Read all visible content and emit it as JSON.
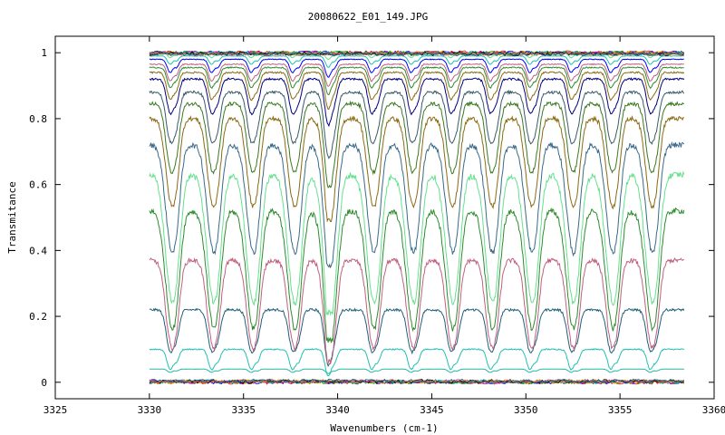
{
  "chart_data": {
    "type": "line",
    "title": "20080622_E01_149.JPG",
    "xlabel": "Wavenumbers (cm-1)",
    "ylabel": "Transmitance",
    "xlim": [
      3325,
      3360
    ],
    "ylim": [
      -0.05,
      1.05
    ],
    "x_ticks": [
      "3325",
      "3330",
      "3335",
      "3340",
      "3345",
      "3350",
      "3355",
      "3360"
    ],
    "x_tick_values": [
      3325,
      3330,
      3335,
      3340,
      3345,
      3350,
      3355,
      3360
    ],
    "y_ticks": [
      "0",
      "0.2",
      "0.4",
      "0.6",
      "0.8",
      "1"
    ],
    "y_tick_values": [
      0,
      0.2,
      0.4,
      0.6,
      0.8,
      1.0
    ],
    "x_range": [
      3330,
      3358.4
    ],
    "line_periods_cm1": 2.13,
    "line_positions_cm1": [
      3331.1,
      3333.3,
      3335.4,
      3337.6,
      3339.5,
      3341.8,
      3343.9,
      3346.0,
      3348.1,
      3350.2,
      3352.4,
      3354.5,
      3356.6
    ],
    "grid": false,
    "legend": "none",
    "series": [
      {
        "color": "#20b8a8",
        "baseline": 0.04,
        "depth": 0.01
      },
      {
        "color": "#20c0b0",
        "baseline": 0.1,
        "depth": 0.06
      },
      {
        "color": "#1f5f7a",
        "baseline": 0.22,
        "depth": 0.12
      },
      {
        "color": "#c0607f",
        "baseline": 0.37,
        "depth": 0.22
      },
      {
        "color": "#2e8b2e",
        "baseline": 0.52,
        "depth": 0.28
      },
      {
        "color": "#66e08f",
        "baseline": 0.63,
        "depth": 0.3
      },
      {
        "color": "#3a6a8a",
        "baseline": 0.72,
        "depth": 0.26
      },
      {
        "color": "#8b6a14",
        "baseline": 0.8,
        "depth": 0.22
      },
      {
        "color": "#3a7a20",
        "baseline": 0.845,
        "depth": 0.18
      },
      {
        "color": "#3a5a6a",
        "baseline": 0.88,
        "depth": 0.14
      },
      {
        "color": "#000080",
        "baseline": 0.92,
        "depth": 0.1
      },
      {
        "color": "#8b6a14",
        "baseline": 0.94,
        "depth": 0.08
      },
      {
        "color": "#2e8b2e",
        "baseline": 0.955,
        "depth": 0.06
      },
      {
        "color": "#c0607f",
        "baseline": 0.965,
        "depth": 0.05
      },
      {
        "color": "#0000ff",
        "baseline": 0.98,
        "depth": 0.04
      },
      {
        "color": "#20c0b0",
        "baseline": 0.99,
        "depth": 0.025
      },
      {
        "color": "#66e08f",
        "baseline": 1.0,
        "depth": 0.015
      }
    ],
    "flat_series_colors": [
      "#ff0000",
      "#0000ff",
      "#00aa00",
      "#aa00aa",
      "#888800",
      "#00aaaa",
      "#ff8800",
      "#000000",
      "#c0607f",
      "#1f5f7a"
    ]
  }
}
